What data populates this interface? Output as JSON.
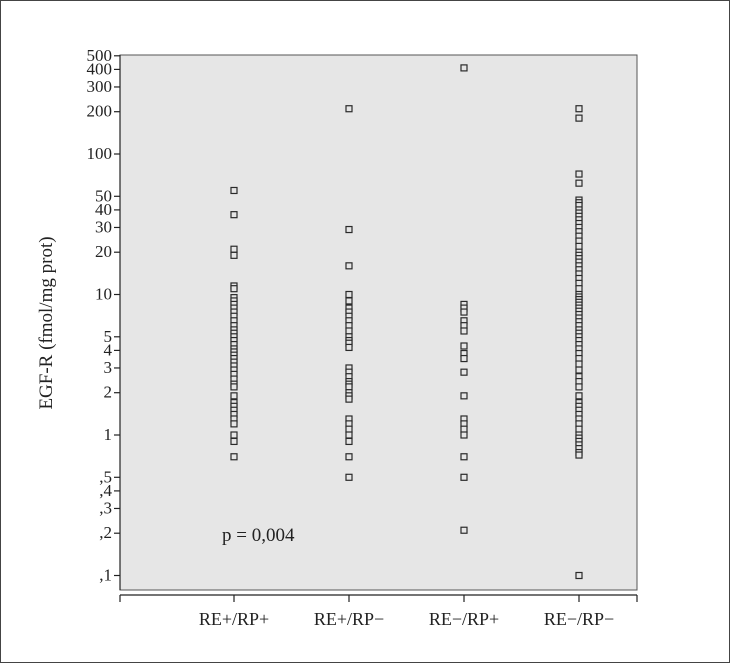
{
  "chart_data": {
    "type": "scatter",
    "title": "",
    "xlabel": "",
    "ylabel": "EGF-R (fmol/mg prot)",
    "y_scale": "log",
    "ylim": [
      0.08,
      500
    ],
    "y_ticks": [
      {
        "value": 500,
        "label": "500"
      },
      {
        "value": 400,
        "label": "400"
      },
      {
        "value": 300,
        "label": "300"
      },
      {
        "value": 200,
        "label": "200"
      },
      {
        "value": 100,
        "label": "100"
      },
      {
        "value": 50,
        "label": "50"
      },
      {
        "value": 40,
        "label": "40"
      },
      {
        "value": 30,
        "label": "30"
      },
      {
        "value": 20,
        "label": "20"
      },
      {
        "value": 10,
        "label": "10"
      },
      {
        "value": 5,
        "label": "5"
      },
      {
        "value": 4,
        "label": "4"
      },
      {
        "value": 3,
        "label": "3"
      },
      {
        "value": 2,
        "label": "2"
      },
      {
        "value": 1,
        "label": "1"
      },
      {
        "value": 0.5,
        "label": ",5"
      },
      {
        "value": 0.4,
        "label": ",4"
      },
      {
        "value": 0.3,
        "label": ",3"
      },
      {
        "value": 0.2,
        "label": ",2"
      },
      {
        "value": 0.1,
        "label": ",1"
      }
    ],
    "categories": [
      "RE+/RP+",
      "RE+/RP−",
      "RE−/RP+",
      "RE−/RP−"
    ],
    "series": [
      {
        "category": "RE+/RP+",
        "values": [
          55,
          37,
          21,
          19,
          11.5,
          11,
          9.5,
          9,
          8.5,
          8,
          7.5,
          7,
          6.5,
          6,
          5.6,
          5.3,
          5,
          4.7,
          4.4,
          4.1,
          3.9,
          3.7,
          3.5,
          3.3,
          3.1,
          2.9,
          2.7,
          2.5,
          2.3,
          2.2,
          1.9,
          1.7,
          1.6,
          1.5,
          1.4,
          1.3,
          1.2,
          1,
          0.9,
          0.7
        ]
      },
      {
        "category": "RE+/RP−",
        "values": [
          210,
          29,
          16,
          10,
          9,
          8,
          7.5,
          7,
          6.5,
          6,
          5.5,
          5,
          4.7,
          4.5,
          4.2,
          3,
          2.8,
          2.6,
          2.4,
          2.3,
          2.2,
          2,
          1.9,
          1.8,
          1.3,
          1.2,
          1.1,
          1,
          0.9,
          0.7,
          0.5
        ]
      },
      {
        "category": "RE−/RP+",
        "values": [
          410,
          8.5,
          8,
          7.5,
          6.5,
          6,
          5.5,
          4.3,
          3.8,
          3.5,
          2.8,
          1.9,
          1.3,
          1.2,
          1.1,
          1,
          0.7,
          0.5,
          0.21
        ]
      },
      {
        "category": "RE−/RP−",
        "values": [
          210,
          180,
          72,
          62,
          47,
          45,
          43,
          40,
          38,
          36,
          34,
          32,
          30,
          28,
          26,
          24,
          22,
          20,
          19,
          18,
          17,
          16,
          15,
          14,
          13,
          12,
          11,
          10,
          9.6,
          9.2,
          8.8,
          8.4,
          8,
          7.6,
          7.2,
          6.8,
          6.4,
          6,
          5.6,
          5.3,
          5,
          4.7,
          4.4,
          4.1,
          3.8,
          3.5,
          3.2,
          2.9,
          2.6,
          2.4,
          2.2,
          1.9,
          1.7,
          1.6,
          1.5,
          1.4,
          1.3,
          1.2,
          1.1,
          1,
          0.95,
          0.9,
          0.85,
          0.8,
          0.75,
          0.72,
          0.1
        ]
      }
    ],
    "annotation": "p = 0,004",
    "grid": false,
    "legend": "none",
    "colors": {
      "plot_bg": "#e6e6e6",
      "marker_stroke": "#2a2a2a",
      "axis": "#222222"
    }
  }
}
